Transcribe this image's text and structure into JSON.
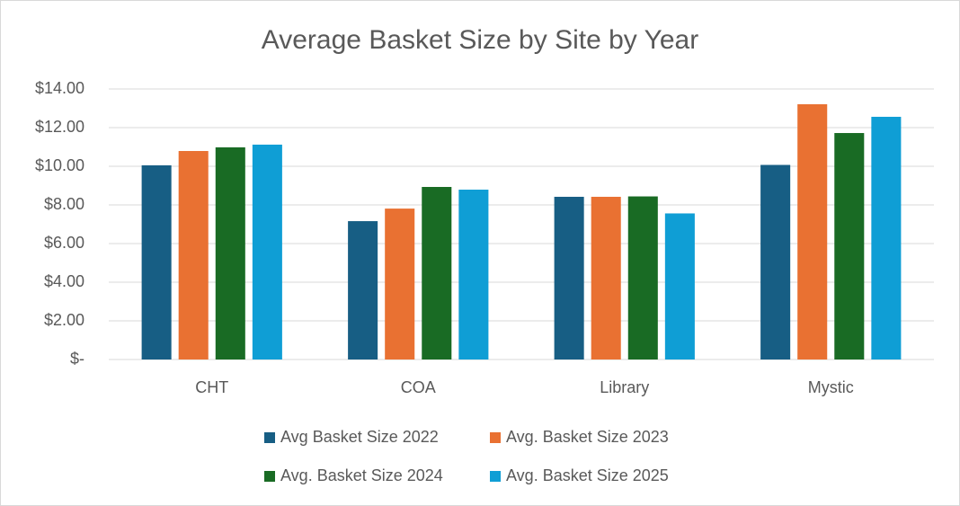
{
  "chart_data": {
    "type": "bar",
    "title": "Average Basket Size by Site by Year",
    "categories": [
      "CHT",
      "COA",
      "Library",
      "Mystic"
    ],
    "series": [
      {
        "name": "Avg Basket Size 2022",
        "color": "#175e84",
        "values": [
          10.05,
          7.16,
          8.42,
          10.07
        ]
      },
      {
        "name": "Avg. Basket Size 2023",
        "color": "#e97132",
        "values": [
          10.79,
          7.81,
          8.42,
          13.21
        ]
      },
      {
        "name": "Avg. Basket Size 2024",
        "color": "#196b24",
        "values": [
          10.98,
          8.93,
          8.44,
          11.72
        ]
      },
      {
        "name": "Avg. Basket Size 2025",
        "color": "#0f9ed5",
        "values": [
          11.12,
          8.79,
          7.56,
          12.56
        ]
      }
    ],
    "ylim": [
      0,
      14
    ],
    "yticks": [
      {
        "value": 0,
        "label": "$-"
      },
      {
        "value": 2,
        "label": "$2.00"
      },
      {
        "value": 4,
        "label": "$4.00"
      },
      {
        "value": 6,
        "label": "$6.00"
      },
      {
        "value": 8,
        "label": "$8.00"
      },
      {
        "value": 10,
        "label": "$10.00"
      },
      {
        "value": 12,
        "label": "$12.00"
      },
      {
        "value": 14,
        "label": "$14.00"
      }
    ],
    "grid": true,
    "legend": "bottom"
  }
}
